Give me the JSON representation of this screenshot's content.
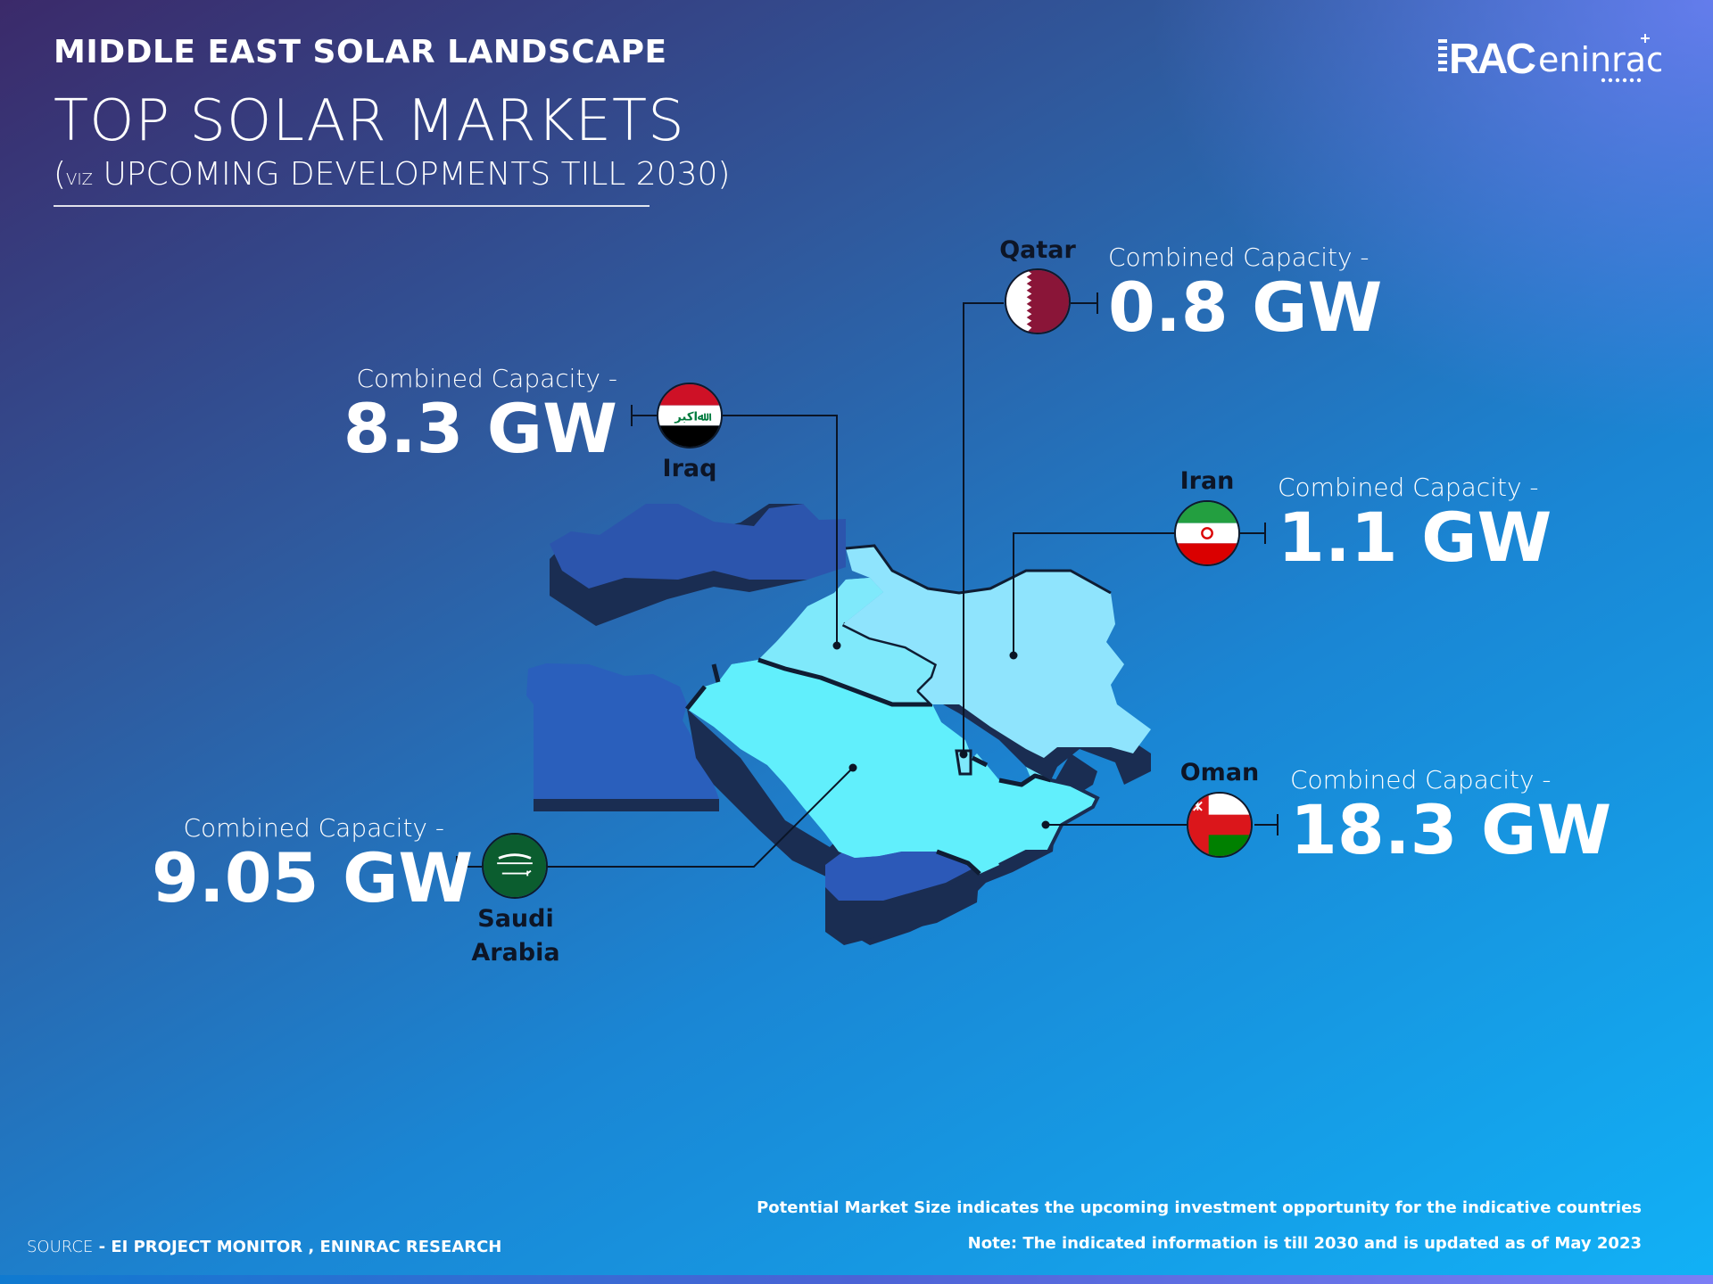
{
  "header": {
    "kicker": "MIDDLE EAST SOLAR LANDSCAPE",
    "title": "TOP SOLAR MARKETS",
    "subtitle_open": "(",
    "subtitle_viz": "VIZ",
    "subtitle_rest": " UPCOMING DEVELOPMENTS TILL 2030)"
  },
  "logo": {
    "text_left": "RAC",
    "text_right": "eninrac"
  },
  "markets": [
    {
      "country": "Qatar",
      "label": "Combined Capacity -",
      "value": "0.8 GW",
      "flag_icon": "qatar-flag-icon"
    },
    {
      "country": "Iraq",
      "label": "Combined Capacity -",
      "value": "8.3 GW",
      "flag_icon": "iraq-flag-icon"
    },
    {
      "country": "Iran",
      "label": "Combined Capacity -",
      "value": "1.1 GW",
      "flag_icon": "iran-flag-icon"
    },
    {
      "country": "Oman",
      "label": "Combined Capacity -",
      "value": "18.3 GW",
      "flag_icon": "oman-flag-icon"
    },
    {
      "country_line1": "Saudi",
      "country_line2": "Arabia",
      "label": "Combined Capacity -",
      "value": "9.05 GW",
      "flag_icon": "saudi-flag-icon"
    }
  ],
  "footer": {
    "note1": "Potential Market Size indicates the upcoming investment opportunity for the indicative countries",
    "note2": "Note: The indicated information is till 2030 and is updated as of May 2023",
    "source_label": "SOURCE",
    "source_value": " - EI PROJECT MONITOR , ENINRAC RESEARCH"
  },
  "colors": {
    "land_light": "#7fe6fb",
    "land_mid": "#4aa6e8",
    "land_dark": "#2a5ab8",
    "shadow": "#1a2d52",
    "border": "#0f1d33"
  }
}
